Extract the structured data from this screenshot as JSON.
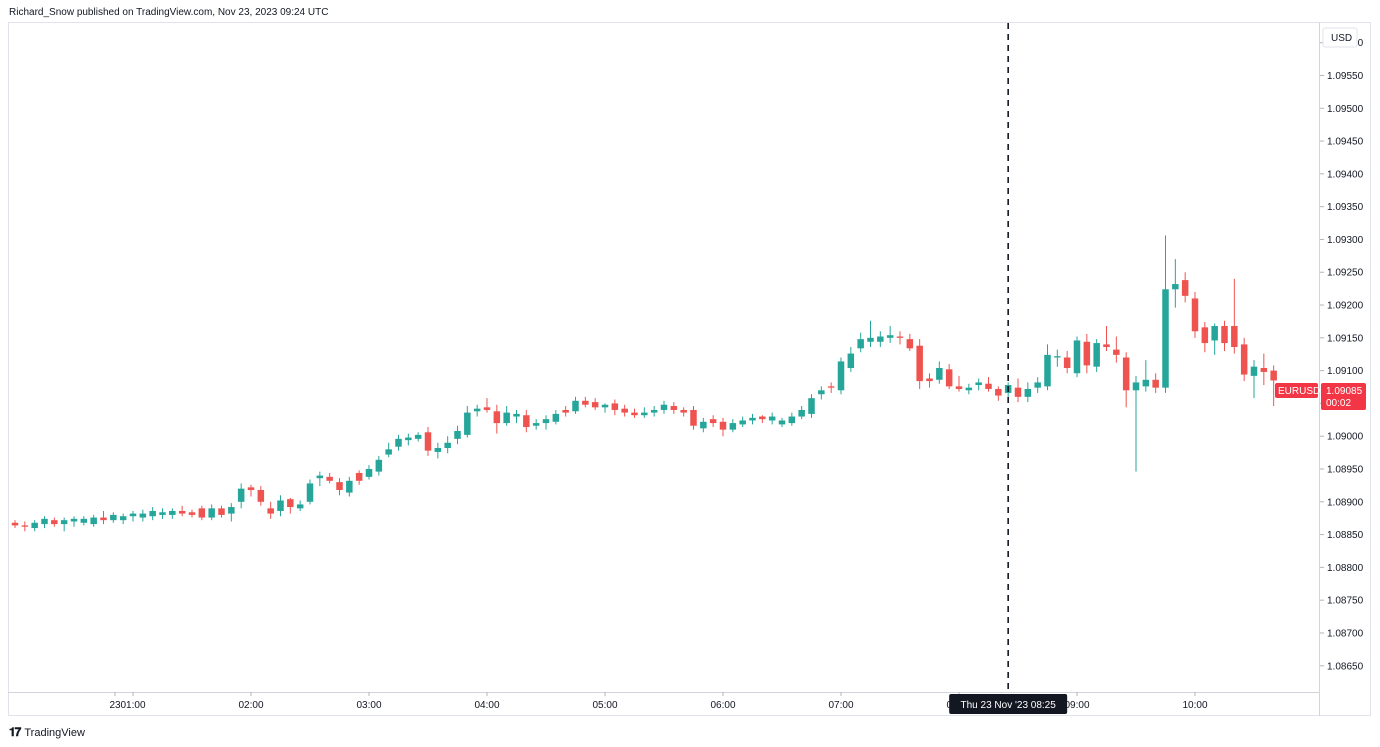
{
  "header": {
    "attribution": "Richard_Snow published on TradingView.com, Nov 23, 2023 09:24 UTC"
  },
  "footer": {
    "brand": "TradingView",
    "logo_icon": "tradingview-logo-icon"
  },
  "price_axis": {
    "currency": "USD",
    "ticks": [
      "1.09600",
      "1.09550",
      "1.09500",
      "1.09450",
      "1.09400",
      "1.09350",
      "1.09300",
      "1.09250",
      "1.09200",
      "1.09150",
      "1.09100",
      "1.09050",
      "1.09000",
      "1.08950",
      "1.08900",
      "1.08850",
      "1.08800",
      "1.08750",
      "1.08700",
      "1.08650"
    ]
  },
  "price_label": {
    "symbol": "EURUSD",
    "price": "1.09085",
    "countdown": "00:02",
    "color": "#f23645"
  },
  "crosshair": {
    "label": "Thu 23 Nov '23   08:25"
  },
  "colors": {
    "up": "#26a69a",
    "down": "#ef5350",
    "grid": "#ffffff"
  },
  "chart_data": {
    "type": "candlestick",
    "symbol": "EURUSD",
    "interval_minutes": 5,
    "x_axis_ticks": [
      "23",
      "01:00",
      "02:00",
      "03:00",
      "04:00",
      "05:00",
      "06:00",
      "07:00",
      "08:00",
      "09:00",
      "10:00"
    ],
    "y_range": [
      1.0861,
      1.0963
    ],
    "crosshair_time": "08:25",
    "candles": [
      [
        "00:00",
        1.08868,
        1.08872,
        1.0886,
        1.08864
      ],
      [
        "00:05",
        1.08864,
        1.0887,
        1.08855,
        1.08862
      ],
      [
        "00:10",
        1.0886,
        1.08872,
        1.08855,
        1.08868
      ],
      [
        "00:15",
        1.08866,
        1.08878,
        1.0886,
        1.08874
      ],
      [
        "00:20",
        1.08872,
        1.08876,
        1.08862,
        1.08866
      ],
      [
        "00:25",
        1.08866,
        1.08876,
        1.08855,
        1.08872
      ],
      [
        "00:30",
        1.0887,
        1.08878,
        1.08862,
        1.08874
      ],
      [
        "00:35",
        1.08868,
        1.08878,
        1.08864,
        1.08874
      ],
      [
        "00:40",
        1.08866,
        1.0888,
        1.08862,
        1.08876
      ],
      [
        "00:45",
        1.08876,
        1.08886,
        1.08866,
        1.08872
      ],
      [
        "00:50",
        1.08872,
        1.08884,
        1.08868,
        1.0888
      ],
      [
        "00:55",
        1.08872,
        1.08882,
        1.08866,
        1.08878
      ],
      [
        "01:00",
        1.08878,
        1.08886,
        1.0887,
        1.08882
      ],
      [
        "01:05",
        1.08876,
        1.08888,
        1.0887,
        1.08882
      ],
      [
        "01:10",
        1.08878,
        1.08892,
        1.08872,
        1.08886
      ],
      [
        "01:15",
        1.0888,
        1.0889,
        1.08874,
        1.08884
      ],
      [
        "01:20",
        1.0888,
        1.0889,
        1.08874,
        1.08886
      ],
      [
        "01:25",
        1.08886,
        1.08894,
        1.08878,
        1.08882
      ],
      [
        "01:30",
        1.08884,
        1.08888,
        1.08876,
        1.0888
      ],
      [
        "01:35",
        1.0889,
        1.08894,
        1.08872,
        1.08876
      ],
      [
        "01:40",
        1.08876,
        1.08896,
        1.08872,
        1.0889
      ],
      [
        "01:45",
        1.0889,
        1.08894,
        1.08876,
        1.0888
      ],
      [
        "01:50",
        1.08882,
        1.08898,
        1.0887,
        1.08892
      ],
      [
        "01:55",
        1.089,
        1.08928,
        1.0889,
        1.0892
      ],
      [
        "02:00",
        1.08922,
        1.08926,
        1.08908,
        1.08918
      ],
      [
        "02:05",
        1.08918,
        1.08924,
        1.08894,
        1.089
      ],
      [
        "02:10",
        1.0889,
        1.089,
        1.08874,
        1.08882
      ],
      [
        "02:15",
        1.08886,
        1.0891,
        1.08878,
        1.08902
      ],
      [
        "02:20",
        1.08904,
        1.08906,
        1.08882,
        1.08892
      ],
      [
        "02:25",
        1.0889,
        1.08902,
        1.08886,
        1.08896
      ],
      [
        "02:30",
        1.089,
        1.08934,
        1.08896,
        1.08928
      ],
      [
        "02:35",
        1.08936,
        1.08946,
        1.08924,
        1.0894
      ],
      [
        "02:40",
        1.08938,
        1.08944,
        1.08928,
        1.08932
      ],
      [
        "02:45",
        1.0893,
        1.08936,
        1.0891,
        1.08918
      ],
      [
        "02:50",
        1.08914,
        1.08938,
        1.08908,
        1.08932
      ],
      [
        "02:55",
        1.08944,
        1.08948,
        1.08926,
        1.08932
      ],
      [
        "03:00",
        1.08938,
        1.08956,
        1.08934,
        1.0895
      ],
      [
        "03:05",
        1.08946,
        1.0897,
        1.0894,
        1.08964
      ],
      [
        "03:10",
        1.08972,
        1.0899,
        1.08968,
        1.0898
      ],
      [
        "03:15",
        1.08984,
        1.09002,
        1.08978,
        1.08996
      ],
      [
        "03:20",
        1.08994,
        1.09004,
        1.08986,
        1.08998
      ],
      [
        "03:25",
        1.08996,
        1.09006,
        1.08992,
        1.09002
      ],
      [
        "03:30",
        1.09006,
        1.09014,
        1.0897,
        1.08978
      ],
      [
        "03:35",
        1.08976,
        1.0899,
        1.08966,
        1.08982
      ],
      [
        "03:40",
        1.08982,
        1.09,
        1.08974,
        1.0899
      ],
      [
        "03:45",
        1.08996,
        1.09016,
        1.08988,
        1.09008
      ],
      [
        "03:50",
        1.09002,
        1.09046,
        1.08998,
        1.09036
      ],
      [
        "03:55",
        1.09038,
        1.09048,
        1.0903,
        1.09042
      ],
      [
        "04:00",
        1.09044,
        1.09058,
        1.09036,
        1.0904
      ],
      [
        "04:05",
        1.09038,
        1.09048,
        1.09004,
        1.0902
      ],
      [
        "04:10",
        1.0902,
        1.09046,
        1.09016,
        1.09036
      ],
      [
        "04:15",
        1.0903,
        1.0904,
        1.0902,
        1.09034
      ],
      [
        "04:20",
        1.09032,
        1.0904,
        1.09006,
        1.09014
      ],
      [
        "04:25",
        1.09016,
        1.09026,
        1.0901,
        1.0902
      ],
      [
        "04:30",
        1.0902,
        1.09032,
        1.0901,
        1.09026
      ],
      [
        "04:35",
        1.09022,
        1.0904,
        1.09018,
        1.09034
      ],
      [
        "04:40",
        1.0904,
        1.09046,
        1.0903,
        1.09036
      ],
      [
        "04:45",
        1.09038,
        1.0906,
        1.09034,
        1.09054
      ],
      [
        "04:50",
        1.09054,
        1.0906,
        1.09044,
        1.09048
      ],
      [
        "04:55",
        1.09052,
        1.09058,
        1.0904,
        1.09044
      ],
      [
        "05:00",
        1.09044,
        1.0905,
        1.09036,
        1.09048
      ],
      [
        "05:05",
        1.0905,
        1.09056,
        1.09032,
        1.0904
      ],
      [
        "05:10",
        1.09042,
        1.09048,
        1.0903,
        1.09036
      ],
      [
        "05:15",
        1.09036,
        1.09042,
        1.09028,
        1.09032
      ],
      [
        "05:20",
        1.09032,
        1.09044,
        1.09028,
        1.09036
      ],
      [
        "05:25",
        1.09036,
        1.09046,
        1.0903,
        1.0904
      ],
      [
        "05:30",
        1.0904,
        1.09054,
        1.09034,
        1.09048
      ],
      [
        "05:35",
        1.09046,
        1.09052,
        1.09034,
        1.0904
      ],
      [
        "05:40",
        1.0904,
        1.09044,
        1.0903,
        1.09036
      ],
      [
        "05:45",
        1.0904,
        1.09046,
        1.0901,
        1.09016
      ],
      [
        "05:50",
        1.09012,
        1.09028,
        1.09006,
        1.09022
      ],
      [
        "05:55",
        1.09026,
        1.09032,
        1.09014,
        1.0902
      ],
      [
        "06:00",
        1.09022,
        1.09028,
        1.09,
        1.0901
      ],
      [
        "06:05",
        1.0901,
        1.09026,
        1.09006,
        1.0902
      ],
      [
        "06:10",
        1.09018,
        1.0903,
        1.09014,
        1.09024
      ],
      [
        "06:15",
        1.09024,
        1.09034,
        1.09018,
        1.09028
      ],
      [
        "06:20",
        1.0903,
        1.09032,
        1.0902,
        1.09026
      ],
      [
        "06:25",
        1.09024,
        1.09036,
        1.09018,
        1.0903
      ],
      [
        "06:30",
        1.09018,
        1.09028,
        1.09014,
        1.09024
      ],
      [
        "06:35",
        1.0902,
        1.09036,
        1.09016,
        1.0903
      ],
      [
        "06:40",
        1.0903,
        1.09046,
        1.09026,
        1.0904
      ],
      [
        "06:45",
        1.09034,
        1.09064,
        1.09028,
        1.09058
      ],
      [
        "06:50",
        1.09064,
        1.09076,
        1.09056,
        1.0907
      ],
      [
        "06:55",
        1.09076,
        1.09082,
        1.09066,
        1.09074
      ],
      [
        "07:00",
        1.0907,
        1.0912,
        1.09064,
        1.09114
      ],
      [
        "07:05",
        1.09104,
        1.09136,
        1.09098,
        1.09126
      ],
      [
        "07:10",
        1.09134,
        1.09158,
        1.09128,
        1.09148
      ],
      [
        "07:15",
        1.09144,
        1.09176,
        1.09136,
        1.0915
      ],
      [
        "07:20",
        1.09144,
        1.0916,
        1.09136,
        1.09152
      ],
      [
        "07:25",
        1.0915,
        1.09168,
        1.09142,
        1.09154
      ],
      [
        "07:30",
        1.09152,
        1.0916,
        1.0914,
        1.0915
      ],
      [
        "07:35",
        1.09148,
        1.09156,
        1.0913,
        1.09134
      ],
      [
        "07:40",
        1.09138,
        1.09148,
        1.09072,
        1.09084
      ],
      [
        "07:45",
        1.09088,
        1.09096,
        1.09074,
        1.09084
      ],
      [
        "07:50",
        1.09086,
        1.09114,
        1.0908,
        1.09104
      ],
      [
        "07:55",
        1.09102,
        1.0911,
        1.09072,
        1.09076
      ],
      [
        "08:00",
        1.09076,
        1.09092,
        1.09068,
        1.09072
      ],
      [
        "08:05",
        1.0907,
        1.0908,
        1.09064,
        1.09074
      ],
      [
        "08:10",
        1.09078,
        1.09088,
        1.0907,
        1.09082
      ],
      [
        "08:15",
        1.0908,
        1.0909,
        1.09068,
        1.09072
      ],
      [
        "08:20",
        1.09072,
        1.09076,
        1.09054,
        1.09062
      ],
      [
        "08:25",
        1.09066,
        1.09082,
        1.0906,
        1.09078
      ],
      [
        "08:30",
        1.09074,
        1.09088,
        1.09052,
        1.0906
      ],
      [
        "08:35",
        1.0906,
        1.09082,
        1.09052,
        1.09072
      ],
      [
        "08:40",
        1.09074,
        1.0909,
        1.09066,
        1.09082
      ],
      [
        "08:45",
        1.09076,
        1.0914,
        1.0907,
        1.09124
      ],
      [
        "08:50",
        1.0912,
        1.09132,
        1.09106,
        1.09122
      ],
      [
        "08:55",
        1.0912,
        1.0913,
        1.09096,
        1.09104
      ],
      [
        "09:00",
        1.09096,
        1.09152,
        1.0909,
        1.09146
      ],
      [
        "09:05",
        1.09144,
        1.09156,
        1.09096,
        1.09108
      ],
      [
        "09:10",
        1.09106,
        1.09148,
        1.09098,
        1.09142
      ],
      [
        "09:15",
        1.0914,
        1.09168,
        1.0913,
        1.09136
      ],
      [
        "09:20",
        1.09132,
        1.09152,
        1.09112,
        1.09124
      ],
      [
        "09:25",
        1.0912,
        1.09128,
        1.09044,
        1.0907
      ],
      [
        "09:30",
        1.0907,
        1.09092,
        1.08946,
        1.09082
      ],
      [
        "09:35",
        1.09076,
        1.09116,
        1.09068,
        1.09086
      ],
      [
        "09:40",
        1.09086,
        1.09096,
        1.09066,
        1.09074
      ],
      [
        "09:45",
        1.09074,
        1.09306,
        1.09066,
        1.09224
      ],
      [
        "09:50",
        1.09224,
        1.0927,
        1.09196,
        1.09232
      ],
      [
        "09:55",
        1.09238,
        1.0925,
        1.09204,
        1.09214
      ],
      [
        "10:00",
        1.0921,
        1.0922,
        1.0915,
        1.0916
      ],
      [
        "10:05",
        1.09166,
        1.09174,
        1.09128,
        1.09142
      ],
      [
        "10:10",
        1.09146,
        1.09172,
        1.09124,
        1.09168
      ],
      [
        "10:15",
        1.09168,
        1.09176,
        1.0913,
        1.09142
      ],
      [
        "10:20",
        1.09168,
        1.0924,
        1.09126,
        1.09136
      ],
      [
        "10:25",
        1.0914,
        1.0915,
        1.09084,
        1.09094
      ],
      [
        "10:30",
        1.09092,
        1.09116,
        1.09058,
        1.09106
      ],
      [
        "10:35",
        1.09104,
        1.09126,
        1.09078,
        1.09098
      ],
      [
        "10:40",
        1.091,
        1.09108,
        1.09046,
        1.09085
      ]
    ]
  }
}
